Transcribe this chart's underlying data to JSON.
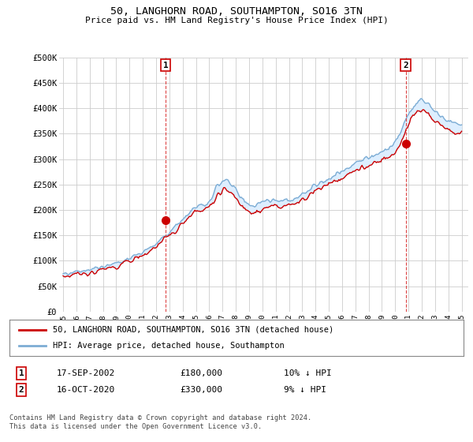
{
  "title": "50, LANGHORN ROAD, SOUTHAMPTON, SO16 3TN",
  "subtitle": "Price paid vs. HM Land Registry's House Price Index (HPI)",
  "ylim": [
    0,
    500000
  ],
  "yticks": [
    0,
    50000,
    100000,
    150000,
    200000,
    250000,
    300000,
    350000,
    400000,
    450000,
    500000
  ],
  "ytick_labels": [
    "£0",
    "£50K",
    "£100K",
    "£150K",
    "£200K",
    "£250K",
    "£300K",
    "£350K",
    "£400K",
    "£450K",
    "£500K"
  ],
  "hpi_color": "#7dadd4",
  "price_color": "#cc0000",
  "fill_color": "#ddeeff",
  "annotation_color": "#dd4444",
  "annotation_box_color": "#cc0000",
  "background_color": "#ffffff",
  "plot_bg_color": "#ffffff",
  "grid_color": "#cccccc",
  "legend_label_price": "50, LANGHORN ROAD, SOUTHAMPTON, SO16 3TN (detached house)",
  "legend_label_hpi": "HPI: Average price, detached house, Southampton",
  "transaction1_label": "1",
  "transaction1_date": "17-SEP-2002",
  "transaction1_price": "£180,000",
  "transaction1_note": "10% ↓ HPI",
  "transaction2_label": "2",
  "transaction2_date": "16-OCT-2020",
  "transaction2_price": "£330,000",
  "transaction2_note": "9% ↓ HPI",
  "footer": "Contains HM Land Registry data © Crown copyright and database right 2024.\nThis data is licensed under the Open Government Licence v3.0.",
  "hpi_x": [
    1995.0,
    1995.083,
    1995.167,
    1995.25,
    1995.333,
    1995.417,
    1995.5,
    1995.583,
    1995.667,
    1995.75,
    1995.833,
    1995.917,
    1996.0,
    1996.083,
    1996.167,
    1996.25,
    1996.333,
    1996.417,
    1996.5,
    1996.583,
    1996.667,
    1996.75,
    1996.833,
    1996.917,
    1997.0,
    1997.083,
    1997.167,
    1997.25,
    1997.333,
    1997.417,
    1997.5,
    1997.583,
    1997.667,
    1997.75,
    1997.833,
    1997.917,
    1998.0,
    1998.083,
    1998.167,
    1998.25,
    1998.333,
    1998.417,
    1998.5,
    1998.583,
    1998.667,
    1998.75,
    1998.833,
    1998.917,
    1999.0,
    1999.083,
    1999.167,
    1999.25,
    1999.333,
    1999.417,
    1999.5,
    1999.583,
    1999.667,
    1999.75,
    1999.833,
    1999.917,
    2000.0,
    2000.083,
    2000.167,
    2000.25,
    2000.333,
    2000.417,
    2000.5,
    2000.583,
    2000.667,
    2000.75,
    2000.833,
    2000.917,
    2001.0,
    2001.083,
    2001.167,
    2001.25,
    2001.333,
    2001.417,
    2001.5,
    2001.583,
    2001.667,
    2001.75,
    2001.833,
    2001.917,
    2002.0,
    2002.083,
    2002.167,
    2002.25,
    2002.333,
    2002.417,
    2002.5,
    2002.583,
    2002.667,
    2002.75,
    2002.833,
    2002.917,
    2003.0,
    2003.083,
    2003.167,
    2003.25,
    2003.333,
    2003.417,
    2003.5,
    2003.583,
    2003.667,
    2003.75,
    2003.833,
    2003.917,
    2004.0,
    2004.083,
    2004.167,
    2004.25,
    2004.333,
    2004.417,
    2004.5,
    2004.583,
    2004.667,
    2004.75,
    2004.833,
    2004.917,
    2005.0,
    2005.083,
    2005.167,
    2005.25,
    2005.333,
    2005.417,
    2005.5,
    2005.583,
    2005.667,
    2005.75,
    2005.833,
    2005.917,
    2006.0,
    2006.083,
    2006.167,
    2006.25,
    2006.333,
    2006.417,
    2006.5,
    2006.583,
    2006.667,
    2006.75,
    2006.833,
    2006.917,
    2007.0,
    2007.083,
    2007.167,
    2007.25,
    2007.333,
    2007.417,
    2007.5,
    2007.583,
    2007.667,
    2007.75,
    2007.833,
    2007.917,
    2008.0,
    2008.083,
    2008.167,
    2008.25,
    2008.333,
    2008.417,
    2008.5,
    2008.583,
    2008.667,
    2008.75,
    2008.833,
    2008.917,
    2009.0,
    2009.083,
    2009.167,
    2009.25,
    2009.333,
    2009.417,
    2009.5,
    2009.583,
    2009.667,
    2009.75,
    2009.833,
    2009.917,
    2010.0,
    2010.083,
    2010.167,
    2010.25,
    2010.333,
    2010.417,
    2010.5,
    2010.583,
    2010.667,
    2010.75,
    2010.833,
    2010.917,
    2011.0,
    2011.083,
    2011.167,
    2011.25,
    2011.333,
    2011.417,
    2011.5,
    2011.583,
    2011.667,
    2011.75,
    2011.833,
    2011.917,
    2012.0,
    2012.083,
    2012.167,
    2012.25,
    2012.333,
    2012.417,
    2012.5,
    2012.583,
    2012.667,
    2012.75,
    2012.833,
    2012.917,
    2013.0,
    2013.083,
    2013.167,
    2013.25,
    2013.333,
    2013.417,
    2013.5,
    2013.583,
    2013.667,
    2013.75,
    2013.833,
    2013.917,
    2014.0,
    2014.083,
    2014.167,
    2014.25,
    2014.333,
    2014.417,
    2014.5,
    2014.583,
    2014.667,
    2014.75,
    2014.833,
    2014.917,
    2015.0,
    2015.083,
    2015.167,
    2015.25,
    2015.333,
    2015.417,
    2015.5,
    2015.583,
    2015.667,
    2015.75,
    2015.833,
    2015.917,
    2016.0,
    2016.083,
    2016.167,
    2016.25,
    2016.333,
    2016.417,
    2016.5,
    2016.583,
    2016.667,
    2016.75,
    2016.833,
    2016.917,
    2017.0,
    2017.083,
    2017.167,
    2017.25,
    2017.333,
    2017.417,
    2017.5,
    2017.583,
    2017.667,
    2017.75,
    2017.833,
    2017.917,
    2018.0,
    2018.083,
    2018.167,
    2018.25,
    2018.333,
    2018.417,
    2018.5,
    2018.583,
    2018.667,
    2018.75,
    2018.833,
    2018.917,
    2019.0,
    2019.083,
    2019.167,
    2019.25,
    2019.333,
    2019.417,
    2019.5,
    2019.583,
    2019.667,
    2019.75,
    2019.833,
    2019.917,
    2020.0,
    2020.083,
    2020.167,
    2020.25,
    2020.333,
    2020.417,
    2020.5,
    2020.583,
    2020.667,
    2020.75,
    2020.833,
    2020.917,
    2021.0,
    2021.083,
    2021.167,
    2021.25,
    2021.333,
    2021.417,
    2021.5,
    2021.583,
    2021.667,
    2021.75,
    2021.833,
    2021.917,
    2022.0,
    2022.083,
    2022.167,
    2022.25,
    2022.333,
    2022.417,
    2022.5,
    2022.583,
    2022.667,
    2022.75,
    2022.833,
    2022.917,
    2023.0,
    2023.083,
    2023.167,
    2023.25,
    2023.333,
    2023.417,
    2023.5,
    2023.583,
    2023.667,
    2023.75,
    2023.833,
    2023.917,
    2024.0,
    2024.083,
    2024.167,
    2024.25,
    2024.333,
    2024.417,
    2024.5,
    2024.583,
    2024.667,
    2024.75,
    2024.833,
    2024.917,
    2025.0
  ],
  "transaction1_x": 2002.72,
  "transaction1_y": 180000,
  "transaction2_x": 2020.79,
  "transaction2_y": 330000,
  "xlim_start": 1994.7,
  "xlim_end": 2025.5,
  "xtick_years": [
    1995,
    1996,
    1997,
    1998,
    1999,
    2000,
    2001,
    2002,
    2003,
    2004,
    2005,
    2006,
    2007,
    2008,
    2009,
    2010,
    2011,
    2012,
    2013,
    2014,
    2015,
    2016,
    2017,
    2018,
    2019,
    2020,
    2021,
    2022,
    2023,
    2024,
    2025
  ]
}
